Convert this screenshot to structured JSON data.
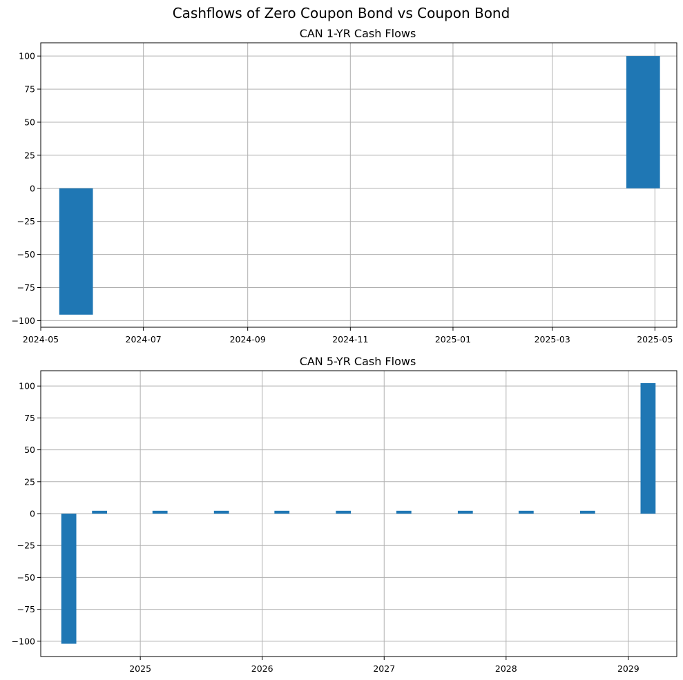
{
  "figure": {
    "suptitle": "Cashflows of Zero Coupon Bond vs Coupon Bond"
  },
  "colors": {
    "bar": "#1f77b4",
    "grid": "#b0b0b0",
    "axis": "#000000"
  },
  "chart_data": [
    {
      "type": "bar",
      "title": "CAN 1-YR Cash Flows",
      "xlabel": "",
      "ylabel": "",
      "x_axis": "date",
      "xlim": [
        "2024-05-01",
        "2025-05-14"
      ],
      "ylim": [
        -105,
        110
      ],
      "x_ticks": [
        "2024-05-01",
        "2024-07-01",
        "2024-09-01",
        "2024-11-01",
        "2025-01-01",
        "2025-03-01",
        "2025-05-01"
      ],
      "x_tick_labels": [
        "2024-05",
        "2024-07",
        "2024-09",
        "2024-11",
        "2025-01",
        "2025-03",
        "2025-05"
      ],
      "y_ticks": [
        -100,
        -75,
        -50,
        -25,
        0,
        25,
        50,
        75,
        100
      ],
      "grid": true,
      "series": [
        {
          "x": [
            "2024-05-22",
            "2025-04-24"
          ],
          "values": [
            -95.5,
            100
          ]
        }
      ]
    },
    {
      "type": "bar",
      "title": "CAN 5-YR Cash Flows",
      "xlabel": "",
      "ylabel": "",
      "x_axis": "date",
      "xlim": [
        "2024-03-09",
        "2029-05-26"
      ],
      "ylim": [
        -112,
        112
      ],
      "x_ticks": [
        "2025-01-01",
        "2026-01-01",
        "2027-01-01",
        "2028-01-01",
        "2029-01-01"
      ],
      "x_tick_labels": [
        "2025",
        "2026",
        "2027",
        "2028",
        "2029"
      ],
      "y_ticks": [
        -100,
        -75,
        -50,
        -25,
        0,
        25,
        50,
        75,
        100
      ],
      "grid": true,
      "series": [
        {
          "x": [
            "2024-06-01",
            "2024-09-01",
            "2025-03-01",
            "2025-09-01",
            "2026-03-01",
            "2026-09-01",
            "2027-03-01",
            "2027-09-01",
            "2028-03-01",
            "2028-09-01",
            "2029-03-01"
          ],
          "values": [
            -102,
            2.25,
            2.25,
            2.25,
            2.25,
            2.25,
            2.25,
            2.25,
            2.25,
            2.25,
            102.25
          ]
        }
      ]
    }
  ]
}
